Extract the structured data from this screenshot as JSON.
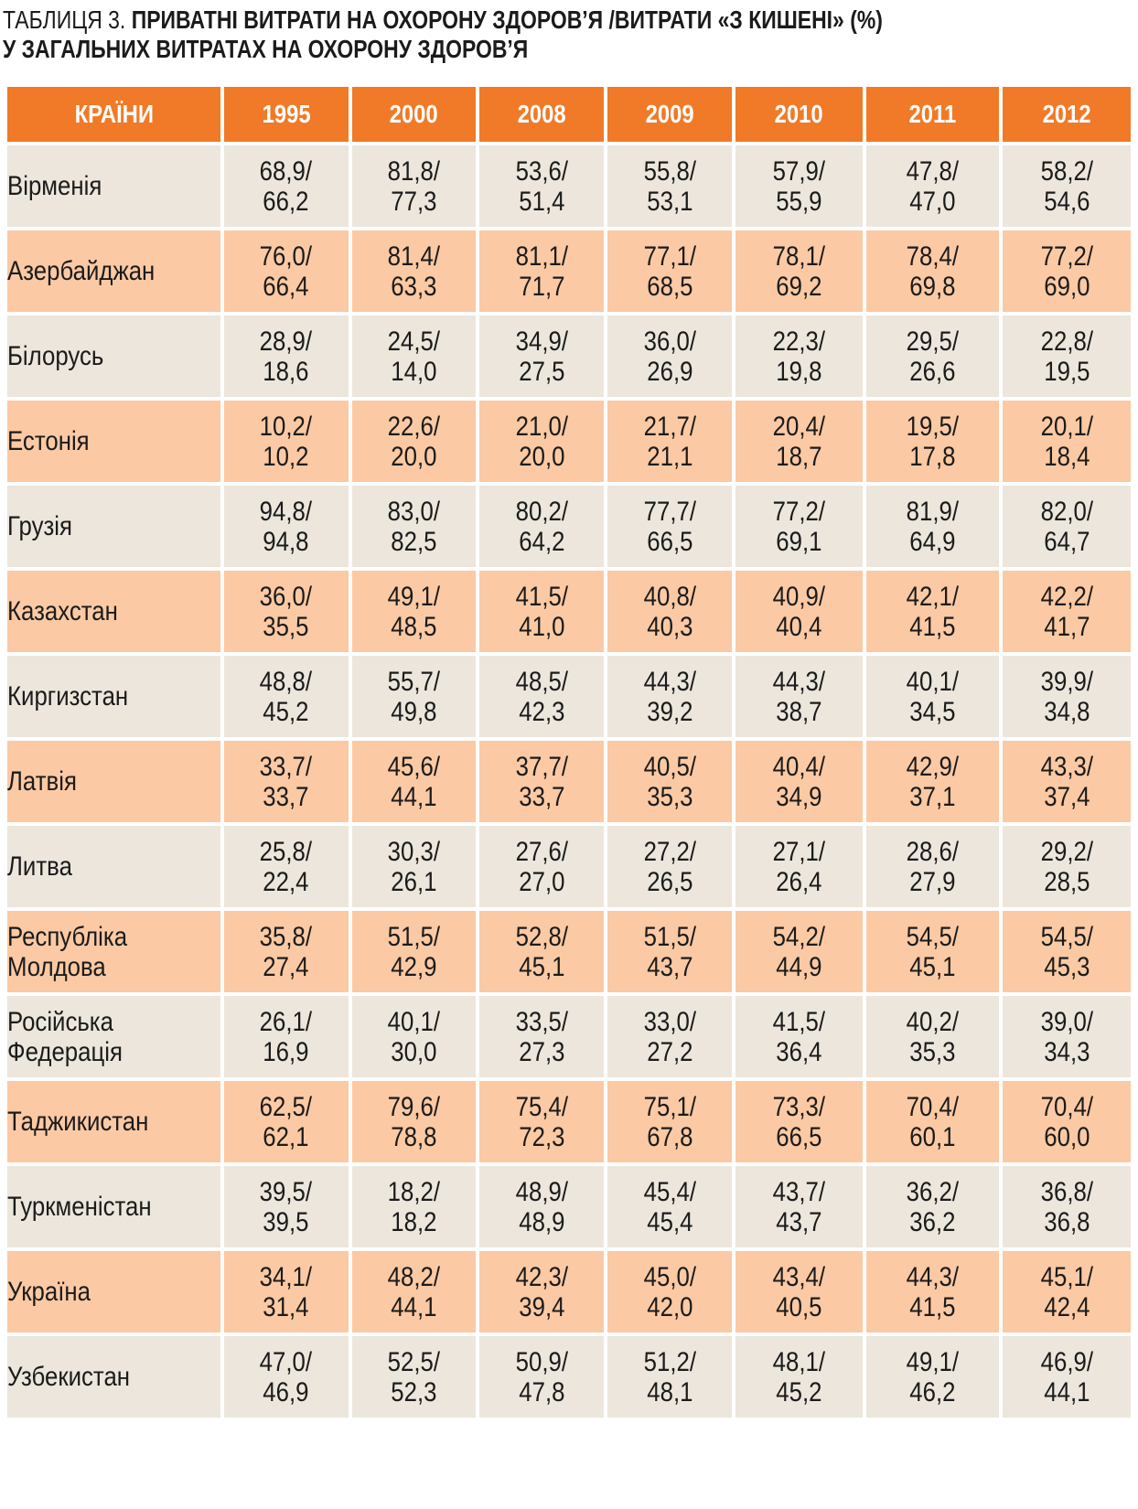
{
  "title": {
    "prefix": "ТАБЛИЦЯ 3.",
    "line1": "ПРИВАТНІ ВИТРАТИ НА ОХОРОНУ ЗДОРОВ’Я /ВИТРАТИ «З КИШЕНІ» (%)",
    "line2": "У ЗАГАЛЬНИХ ВИТРАТАХ НА ОХОРОНУ ЗДОРОВ’Я"
  },
  "colors": {
    "header": "#f07a27",
    "row_light": "#ece6dc",
    "row_orange": "#fbc9a3"
  },
  "headers": [
    "КРАЇНИ",
    "1995",
    "2000",
    "2008",
    "2009",
    "2010",
    "2011",
    "2012"
  ],
  "rows": [
    {
      "country": "Вірменія",
      "values": [
        [
          "68,9/",
          "66,2"
        ],
        [
          "81,8/",
          "77,3"
        ],
        [
          "53,6/",
          "51,4"
        ],
        [
          "55,8/",
          "53,1"
        ],
        [
          "57,9/",
          "55,9"
        ],
        [
          "47,8/",
          "47,0"
        ],
        [
          "58,2/",
          "54,6"
        ]
      ]
    },
    {
      "country": "Азербайджан",
      "values": [
        [
          "76,0/",
          "66,4"
        ],
        [
          "81,4/",
          "63,3"
        ],
        [
          "81,1/",
          "71,7"
        ],
        [
          "77,1/",
          "68,5"
        ],
        [
          "78,1/",
          "69,2"
        ],
        [
          "78,4/",
          "69,8"
        ],
        [
          "77,2/",
          "69,0"
        ]
      ]
    },
    {
      "country": "Білорусь",
      "values": [
        [
          "28,9/",
          "18,6"
        ],
        [
          "24,5/",
          "14,0"
        ],
        [
          "34,9/",
          "27,5"
        ],
        [
          "36,0/",
          "26,9"
        ],
        [
          "22,3/",
          "19,8"
        ],
        [
          "29,5/",
          "26,6"
        ],
        [
          "22,8/",
          "19,5"
        ]
      ]
    },
    {
      "country": "Естонія",
      "values": [
        [
          "10,2/",
          "10,2"
        ],
        [
          "22,6/",
          "20,0"
        ],
        [
          "21,0/",
          "20,0"
        ],
        [
          "21,7/",
          "21,1"
        ],
        [
          "20,4/",
          "18,7"
        ],
        [
          "19,5/",
          "17,8"
        ],
        [
          "20,1/",
          "18,4"
        ]
      ]
    },
    {
      "country": "Грузія",
      "values": [
        [
          "94,8/",
          "94,8"
        ],
        [
          "83,0/",
          "82,5"
        ],
        [
          "80,2/",
          "64,2"
        ],
        [
          "77,7/",
          "66,5"
        ],
        [
          "77,2/",
          "69,1"
        ],
        [
          "81,9/",
          "64,9"
        ],
        [
          "82,0/",
          "64,7"
        ]
      ]
    },
    {
      "country": "Казахстан",
      "values": [
        [
          "36,0/",
          "35,5"
        ],
        [
          "49,1/",
          "48,5"
        ],
        [
          "41,5/",
          "41,0"
        ],
        [
          "40,8/",
          "40,3"
        ],
        [
          "40,9/",
          "40,4"
        ],
        [
          "42,1/",
          "41,5"
        ],
        [
          "42,2/",
          "41,7"
        ]
      ]
    },
    {
      "country": "Киргизстан",
      "values": [
        [
          "48,8/",
          "45,2"
        ],
        [
          "55,7/",
          "49,8"
        ],
        [
          "48,5/",
          "42,3"
        ],
        [
          "44,3/",
          "39,2"
        ],
        [
          "44,3/",
          "38,7"
        ],
        [
          "40,1/",
          "34,5"
        ],
        [
          "39,9/",
          "34,8"
        ]
      ]
    },
    {
      "country": "Латвія",
      "values": [
        [
          "33,7/",
          "33,7"
        ],
        [
          "45,6/",
          "44,1"
        ],
        [
          "37,7/",
          "33,7"
        ],
        [
          "40,5/",
          "35,3"
        ],
        [
          "40,4/",
          "34,9"
        ],
        [
          "42,9/",
          "37,1"
        ],
        [
          "43,3/",
          "37,4"
        ]
      ]
    },
    {
      "country": "Литва",
      "values": [
        [
          "25,8/",
          "22,4"
        ],
        [
          "30,3/",
          "26,1"
        ],
        [
          "27,6/",
          "27,0"
        ],
        [
          "27,2/",
          "26,5"
        ],
        [
          "27,1/",
          "26,4"
        ],
        [
          "28,6/",
          "27,9"
        ],
        [
          "29,2/",
          "28,5"
        ]
      ]
    },
    {
      "country": [
        "Республіка",
        "Молдова"
      ],
      "values": [
        [
          "35,8/",
          "27,4"
        ],
        [
          "51,5/",
          "42,9"
        ],
        [
          "52,8/",
          "45,1"
        ],
        [
          "51,5/",
          "43,7"
        ],
        [
          "54,2/",
          "44,9"
        ],
        [
          "54,5/",
          "45,1"
        ],
        [
          "54,5/",
          "45,3"
        ]
      ]
    },
    {
      "country": [
        "Російська",
        "Федерація"
      ],
      "values": [
        [
          "26,1/",
          "16,9"
        ],
        [
          "40,1/",
          "30,0"
        ],
        [
          "33,5/",
          "27,3"
        ],
        [
          "33,0/",
          "27,2"
        ],
        [
          "41,5/",
          "36,4"
        ],
        [
          "40,2/",
          "35,3"
        ],
        [
          "39,0/",
          "34,3"
        ]
      ]
    },
    {
      "country": "Таджикистан",
      "values": [
        [
          "62,5/",
          "62,1"
        ],
        [
          "79,6/",
          "78,8"
        ],
        [
          "75,4/",
          "72,3"
        ],
        [
          "75,1/",
          "67,8"
        ],
        [
          "73,3/",
          "66,5"
        ],
        [
          "70,4/",
          "60,1"
        ],
        [
          "70,4/",
          "60,0"
        ]
      ]
    },
    {
      "country": "Туркменістан",
      "values": [
        [
          "39,5/",
          "39,5"
        ],
        [
          "18,2/",
          "18,2"
        ],
        [
          "48,9/",
          "48,9"
        ],
        [
          "45,4/",
          "45,4"
        ],
        [
          "43,7/",
          "43,7"
        ],
        [
          "36,2/",
          "36,2"
        ],
        [
          "36,8/",
          "36,8"
        ]
      ]
    },
    {
      "country": "Україна",
      "values": [
        [
          "34,1/",
          "31,4"
        ],
        [
          "48,2/",
          "44,1"
        ],
        [
          "42,3/",
          "39,4"
        ],
        [
          "45,0/",
          "42,0"
        ],
        [
          "43,4/",
          "40,5"
        ],
        [
          "44,3/",
          "41,5"
        ],
        [
          "45,1/",
          "42,4"
        ]
      ]
    },
    {
      "country": "Узбекистан",
      "values": [
        [
          "47,0/",
          "46,9"
        ],
        [
          "52,5/",
          "52,3"
        ],
        [
          "50,9/",
          "47,8"
        ],
        [
          "51,2/",
          "48,1"
        ],
        [
          "48,1/",
          "45,2"
        ],
        [
          "49,1/",
          "46,2"
        ],
        [
          "46,9/",
          "44,1"
        ]
      ]
    }
  ]
}
